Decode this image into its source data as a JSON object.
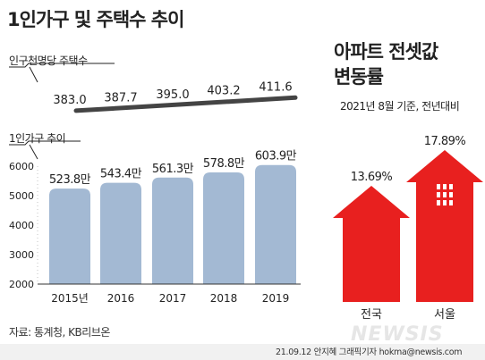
{
  "title": "1인가구 및 주택수 추이",
  "source": "자료: 통계청, KB리브온",
  "footer": "21.09.12 안지혜 그래픽기자 hokma@newsis.com",
  "logo": "NEWSIS",
  "right_title_line1": "아파트 전셋값",
  "right_title_line2": "변동률",
  "right_subtitle": "2021년 8월 기준, 전년대비",
  "colors": {
    "bar": "#a3b9d3",
    "arrow": "#e8201f",
    "line": "#444444",
    "footer_bg": "#f1f1f1"
  },
  "chart_data": [
    {
      "type": "line",
      "title": "인구천명당 주택수",
      "categories": [
        "2015년",
        "2016",
        "2017",
        "2018",
        "2019"
      ],
      "values": [
        383.0,
        387.7,
        395.0,
        403.2,
        411.6
      ],
      "value_labels": [
        "383.0",
        "387.7",
        "395.0",
        "403.2",
        "411.6"
      ]
    },
    {
      "type": "bar",
      "title": "1인가구 추이",
      "categories": [
        "2015년",
        "2016",
        "2017",
        "2018",
        "2019"
      ],
      "values": [
        5238,
        5434,
        5613,
        5788,
        6039
      ],
      "value_labels": [
        "523.8만",
        "543.4만",
        "561.3만",
        "578.8만",
        "603.9만"
      ],
      "yticks": [
        "6000",
        "5000",
        "4000",
        "3000",
        "2000"
      ],
      "ylim": [
        2000,
        6000
      ],
      "grid": false
    },
    {
      "type": "bar",
      "title": "아파트 전셋값 변동률",
      "categories": [
        "전국",
        "서울"
      ],
      "values": [
        13.69,
        17.89
      ],
      "value_labels": [
        "13.69%",
        "17.89%"
      ],
      "unit": "%"
    }
  ]
}
